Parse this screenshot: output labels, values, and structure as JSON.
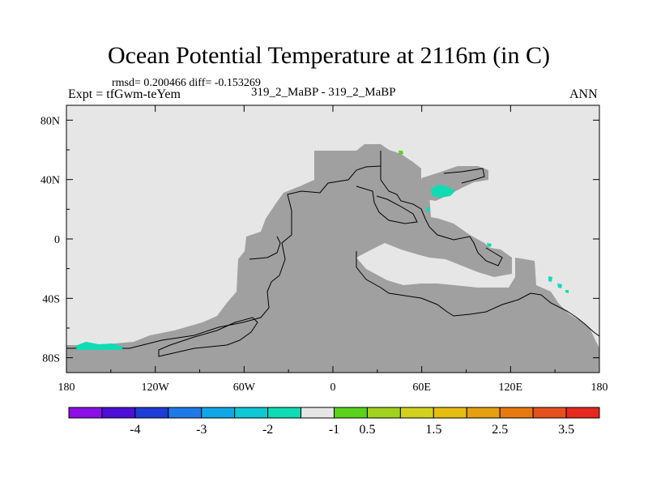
{
  "header": {
    "title": "Ocean Potential Temperature at 2116m (in C)",
    "stats": "rmsd= 0.200466 diff= -0.153269",
    "left_label": "Expt = tfGwm-teYem",
    "center_label": "319_2_MaBP - 319_2_MaBP",
    "right_label": "ANN"
  },
  "chart_data": {
    "type": "heatmap",
    "title": "Ocean Potential Temperature at 2116m (in C)",
    "xlabel": "",
    "ylabel": "",
    "xlim": [
      -180,
      180
    ],
    "ylim": [
      -90,
      90
    ],
    "x_ticks": [
      {
        "value": -180,
        "label": "180"
      },
      {
        "value": -120,
        "label": "120W"
      },
      {
        "value": -60,
        "label": "60W"
      },
      {
        "value": 0,
        "label": "0"
      },
      {
        "value": 60,
        "label": "60E"
      },
      {
        "value": 120,
        "label": "120E"
      },
      {
        "value": 180,
        "label": "180"
      }
    ],
    "y_ticks": [
      {
        "value": 80,
        "label": "80N"
      },
      {
        "value": 40,
        "label": "40N"
      },
      {
        "value": 0,
        "label": "0"
      },
      {
        "value": -40,
        "label": "40S"
      },
      {
        "value": -80,
        "label": "80S"
      }
    ],
    "colorbar": {
      "colors": [
        "#8c0fe6",
        "#4b0fd6",
        "#1e3cd6",
        "#1e7ae6",
        "#0fa8e6",
        "#0fc8d6",
        "#0fdcb4",
        "#e6e6e6",
        "#5ad21e",
        "#a0d21e",
        "#d2d21e",
        "#e6be0f",
        "#e6a00f",
        "#e67a0f",
        "#e6501e",
        "#e6281e"
      ],
      "labels": [
        "-4",
        "-3",
        "-2",
        "-1",
        "0.5",
        "1.5",
        "2.5",
        "3.5"
      ],
      "label_after_box": [
        1,
        3,
        5,
        7,
        8,
        10,
        12,
        14
      ]
    },
    "land_color": "#a0a0a0",
    "ocean_color": "#e6e6e6",
    "ocean_value_range": [
      -0.5,
      0.5
    ],
    "anomaly_patches": [
      {
        "lon": 40,
        "lat": 62,
        "value": 0.75
      },
      {
        "lon": 60,
        "lat": 32,
        "value": -0.75
      },
      {
        "lon": 57,
        "lat": 18,
        "value": -0.75
      },
      {
        "lon": 89,
        "lat": -4,
        "value": -0.75
      },
      {
        "lon": 137,
        "lat": -29,
        "value": -0.75
      },
      {
        "lon": 143,
        "lat": -35,
        "value": -0.75
      },
      {
        "lon": 148,
        "lat": -39,
        "value": -0.75
      },
      {
        "lon": -157,
        "lat": -73,
        "value": -0.75
      }
    ]
  }
}
